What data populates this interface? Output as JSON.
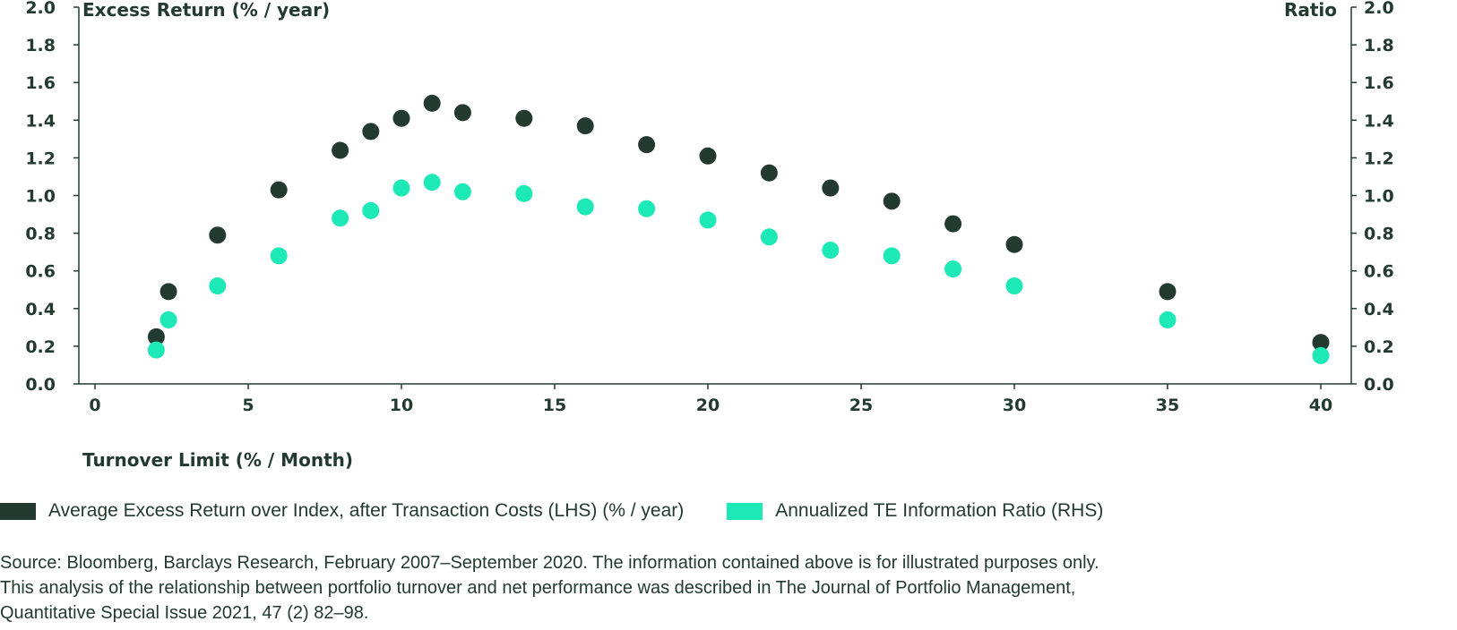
{
  "chart_data": {
    "type": "scatter",
    "left_axis_title": "Excess Return (% / year)",
    "right_axis_title": "Ratio",
    "xlabel": "Turnover Limit (% / Month)",
    "xlim": [
      -1,
      41
    ],
    "ylim": [
      0,
      2.0
    ],
    "x_ticks": [
      "0",
      "5",
      "10",
      "15",
      "20",
      "25",
      "30",
      "35",
      "40"
    ],
    "y_ticks": [
      "0.0",
      "0.2",
      "0.4",
      "0.6",
      "0.8",
      "1.0",
      "1.2",
      "1.4",
      "1.6",
      "1.8",
      "2.0"
    ],
    "grid": false,
    "legend_position": "bottom",
    "series": [
      {
        "name": "Average Excess Return over Index, after Transaction Costs (LHS) (% / year)",
        "axis": "left",
        "color": "#233a30",
        "points": [
          [
            2,
            0.25
          ],
          [
            2.4,
            0.49
          ],
          [
            4,
            0.79
          ],
          [
            6,
            1.03
          ],
          [
            8,
            1.24
          ],
          [
            9,
            1.34
          ],
          [
            10,
            1.41
          ],
          [
            11,
            1.49
          ],
          [
            12,
            1.44
          ],
          [
            14,
            1.41
          ],
          [
            16,
            1.37
          ],
          [
            18,
            1.27
          ],
          [
            20,
            1.21
          ],
          [
            22,
            1.12
          ],
          [
            24,
            1.04
          ],
          [
            26,
            0.97
          ],
          [
            28,
            0.85
          ],
          [
            30,
            0.74
          ],
          [
            35,
            0.49
          ],
          [
            40,
            0.22
          ]
        ]
      },
      {
        "name": "Annualized TE Information Ratio (RHS)",
        "axis": "right",
        "color": "#1de9b6",
        "points": [
          [
            2,
            0.18
          ],
          [
            2.4,
            0.34
          ],
          [
            4,
            0.52
          ],
          [
            6,
            0.68
          ],
          [
            8,
            0.88
          ],
          [
            9,
            0.92
          ],
          [
            10,
            1.04
          ],
          [
            11,
            1.07
          ],
          [
            12,
            1.02
          ],
          [
            14,
            1.01
          ],
          [
            16,
            0.94
          ],
          [
            18,
            0.93
          ],
          [
            20,
            0.87
          ],
          [
            22,
            0.78
          ],
          [
            24,
            0.71
          ],
          [
            26,
            0.68
          ],
          [
            28,
            0.61
          ],
          [
            30,
            0.52
          ],
          [
            35,
            0.34
          ],
          [
            40,
            0.15
          ]
        ]
      }
    ]
  },
  "source_lines": [
    "Source: Bloomberg, Barclays Research, February 2007–September 2020. The information contained above is for illustrated purposes only.",
    "This analysis of the relationship between portfolio turnover and net performance was described in The Journal of Portfolio Management,",
    "Quantitative Special Issue 2021, 47 (2) 82–98."
  ]
}
